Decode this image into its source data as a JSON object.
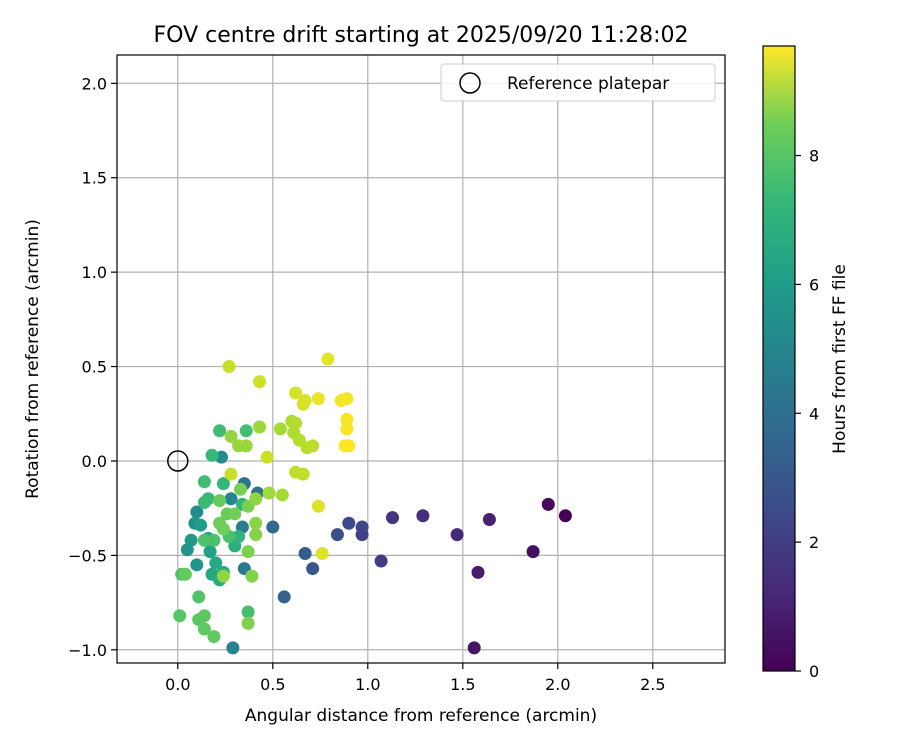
{
  "chart_data": {
    "type": "scatter",
    "title": "FOV centre drift starting at 2025/09/20 11:28:02",
    "xlabel": "Angular distance from reference (arcmin)",
    "ylabel": "Rotation from reference (arcmin)",
    "xlim": [
      -0.32,
      2.88
    ],
    "ylim": [
      -1.07,
      2.15
    ],
    "xticks": [
      0.0,
      0.5,
      1.0,
      1.5,
      2.0,
      2.5
    ],
    "xtick_labels": [
      "0.0",
      "0.5",
      "1.0",
      "1.5",
      "2.0",
      "2.5"
    ],
    "yticks": [
      -1.0,
      -0.5,
      0.0,
      0.5,
      1.0,
      1.5,
      2.0
    ],
    "ytick_labels": [
      "−1.0",
      "−0.5",
      "0.0",
      "0.5",
      "1.0",
      "1.5",
      "2.0"
    ],
    "grid": true,
    "legend": {
      "position": "top-right",
      "entries": [
        "Reference platepar"
      ]
    },
    "reference_point": {
      "x": 0.0,
      "y": 0.0
    },
    "colorbar": {
      "label": "Hours from first FF file",
      "range": [
        0,
        9.7
      ],
      "ticks": [
        0,
        2,
        4,
        6,
        8
      ],
      "tick_labels": [
        "0",
        "2",
        "4",
        "6",
        "8"
      ],
      "colormap": "viridis"
    },
    "points": [
      {
        "x": 2.04,
        "y": -0.29,
        "h": 0.0
      },
      {
        "x": 1.95,
        "y": -0.23,
        "h": 0.2
      },
      {
        "x": 1.87,
        "y": -0.48,
        "h": 0.35
      },
      {
        "x": 1.56,
        "y": -0.99,
        "h": 0.55
      },
      {
        "x": 1.58,
        "y": -0.59,
        "h": 0.7
      },
      {
        "x": 1.64,
        "y": -0.31,
        "h": 0.9
      },
      {
        "x": 1.47,
        "y": -0.39,
        "h": 1.1
      },
      {
        "x": 1.29,
        "y": -0.29,
        "h": 1.3
      },
      {
        "x": 1.13,
        "y": -0.3,
        "h": 1.5
      },
      {
        "x": 1.07,
        "y": -0.53,
        "h": 1.7
      },
      {
        "x": 0.97,
        "y": -0.39,
        "h": 1.9
      },
      {
        "x": 0.97,
        "y": -0.35,
        "h": 2.05
      },
      {
        "x": 0.9,
        "y": -0.33,
        "h": 2.2
      },
      {
        "x": 0.84,
        "y": -0.39,
        "h": 2.4
      },
      {
        "x": 0.71,
        "y": -0.57,
        "h": 2.6
      },
      {
        "x": 0.67,
        "y": -0.49,
        "h": 2.8
      },
      {
        "x": 0.56,
        "y": -0.72,
        "h": 3.0
      },
      {
        "x": 0.5,
        "y": -0.35,
        "h": 3.3
      },
      {
        "x": 0.42,
        "y": -0.17,
        "h": 3.5
      },
      {
        "x": 0.35,
        "y": -0.12,
        "h": 3.7
      },
      {
        "x": 0.35,
        "y": -0.57,
        "h": 3.9
      },
      {
        "x": 0.34,
        "y": -0.35,
        "h": 4.1
      },
      {
        "x": 0.29,
        "y": -0.99,
        "h": 4.3
      },
      {
        "x": 0.28,
        "y": -0.2,
        "h": 4.45
      },
      {
        "x": 0.23,
        "y": 0.02,
        "h": 4.6
      },
      {
        "x": 0.1,
        "y": -0.27,
        "h": 4.75
      },
      {
        "x": 0.09,
        "y": -0.33,
        "h": 4.9
      },
      {
        "x": 0.05,
        "y": -0.47,
        "h": 5.0
      },
      {
        "x": 0.1,
        "y": -0.55,
        "h": 5.1
      },
      {
        "x": 0.07,
        "y": -0.42,
        "h": 5.2
      },
      {
        "x": 0.12,
        "y": -0.34,
        "h": 5.35
      },
      {
        "x": 0.16,
        "y": -0.41,
        "h": 5.5
      },
      {
        "x": 0.17,
        "y": -0.48,
        "h": 5.6
      },
      {
        "x": 0.18,
        "y": -0.6,
        "h": 5.7
      },
      {
        "x": 0.2,
        "y": -0.54,
        "h": 5.8
      },
      {
        "x": 0.22,
        "y": -0.63,
        "h": 5.9
      },
      {
        "x": 0.24,
        "y": -0.59,
        "h": 6.0
      },
      {
        "x": 0.3,
        "y": -0.45,
        "h": 6.1
      },
      {
        "x": 0.32,
        "y": -0.4,
        "h": 6.2
      },
      {
        "x": 0.34,
        "y": -0.23,
        "h": 6.3
      },
      {
        "x": 0.24,
        "y": -0.12,
        "h": 6.4
      },
      {
        "x": 0.18,
        "y": 0.03,
        "h": 6.5
      },
      {
        "x": 0.16,
        "y": -0.2,
        "h": 6.55
      },
      {
        "x": 0.14,
        "y": -0.22,
        "h": 6.6
      },
      {
        "x": 0.14,
        "y": -0.11,
        "h": 6.65
      },
      {
        "x": 0.22,
        "y": 0.16,
        "h": 6.7
      },
      {
        "x": 0.36,
        "y": 0.16,
        "h": 6.75
      },
      {
        "x": 0.37,
        "y": -0.8,
        "h": 6.8
      },
      {
        "x": 0.27,
        "y": -0.4,
        "h": 6.85
      },
      {
        "x": 0.19,
        "y": -0.42,
        "h": 6.9
      },
      {
        "x": 0.14,
        "y": -0.42,
        "h": 6.95
      },
      {
        "x": 0.11,
        "y": -0.72,
        "h": 7.0
      },
      {
        "x": 0.02,
        "y": -0.6,
        "h": 7.05
      },
      {
        "x": 0.01,
        "y": -0.82,
        "h": 7.1
      },
      {
        "x": 0.11,
        "y": -0.84,
        "h": 7.15
      },
      {
        "x": 0.14,
        "y": -0.82,
        "h": 7.2
      },
      {
        "x": 0.14,
        "y": -0.89,
        "h": 7.25
      },
      {
        "x": 0.19,
        "y": -0.93,
        "h": 7.3
      },
      {
        "x": 0.04,
        "y": -0.6,
        "h": 7.35
      },
      {
        "x": 0.22,
        "y": -0.21,
        "h": 7.4
      },
      {
        "x": 0.26,
        "y": -0.28,
        "h": 7.45
      },
      {
        "x": 0.22,
        "y": -0.33,
        "h": 7.5
      },
      {
        "x": 0.24,
        "y": -0.36,
        "h": 7.55
      },
      {
        "x": 0.3,
        "y": -0.28,
        "h": 7.6
      },
      {
        "x": 0.33,
        "y": -0.15,
        "h": 7.65
      },
      {
        "x": 0.37,
        "y": -0.24,
        "h": 7.7
      },
      {
        "x": 0.37,
        "y": -0.48,
        "h": 7.75
      },
      {
        "x": 0.37,
        "y": -0.86,
        "h": 7.8
      },
      {
        "x": 0.39,
        "y": -0.61,
        "h": 7.85
      },
      {
        "x": 0.41,
        "y": -0.39,
        "h": 7.9
      },
      {
        "x": 0.41,
        "y": -0.33,
        "h": 7.95
      },
      {
        "x": 0.41,
        "y": -0.2,
        "h": 8.0
      },
      {
        "x": 0.24,
        "y": -0.61,
        "h": 8.05
      },
      {
        "x": 0.28,
        "y": 0.13,
        "h": 8.1
      },
      {
        "x": 0.32,
        "y": 0.08,
        "h": 8.15
      },
      {
        "x": 0.36,
        "y": 0.08,
        "h": 8.2
      },
      {
        "x": 0.43,
        "y": 0.18,
        "h": 8.25
      },
      {
        "x": 0.48,
        "y": -0.17,
        "h": 8.3
      },
      {
        "x": 0.55,
        "y": -0.18,
        "h": 8.35
      },
      {
        "x": 0.54,
        "y": 0.17,
        "h": 8.4
      },
      {
        "x": 0.6,
        "y": 0.21,
        "h": 8.45
      },
      {
        "x": 0.61,
        "y": 0.15,
        "h": 8.5
      },
      {
        "x": 0.62,
        "y": 0.2,
        "h": 8.55
      },
      {
        "x": 0.64,
        "y": 0.11,
        "h": 8.6
      },
      {
        "x": 0.68,
        "y": 0.07,
        "h": 8.65
      },
      {
        "x": 0.71,
        "y": 0.08,
        "h": 8.7
      },
      {
        "x": 0.62,
        "y": -0.06,
        "h": 8.75
      },
      {
        "x": 0.66,
        "y": -0.07,
        "h": 8.8
      },
      {
        "x": 0.27,
        "y": 0.5,
        "h": 8.85
      },
      {
        "x": 0.28,
        "y": -0.07,
        "h": 8.9
      },
      {
        "x": 0.47,
        "y": 0.02,
        "h": 8.95
      },
      {
        "x": 0.43,
        "y": 0.42,
        "h": 9.0
      },
      {
        "x": 0.62,
        "y": 0.36,
        "h": 9.05
      },
      {
        "x": 0.66,
        "y": 0.3,
        "h": 9.1
      },
      {
        "x": 0.67,
        "y": 0.32,
        "h": 9.15
      },
      {
        "x": 0.74,
        "y": -0.24,
        "h": 9.2
      },
      {
        "x": 0.76,
        "y": -0.49,
        "h": 9.25
      },
      {
        "x": 0.79,
        "y": 0.54,
        "h": 9.3
      },
      {
        "x": 0.74,
        "y": 0.33,
        "h": 9.4
      },
      {
        "x": 0.86,
        "y": 0.32,
        "h": 9.5
      },
      {
        "x": 0.89,
        "y": 0.33,
        "h": 9.55
      },
      {
        "x": 0.89,
        "y": 0.22,
        "h": 9.6
      },
      {
        "x": 0.89,
        "y": 0.17,
        "h": 9.62
      },
      {
        "x": 0.88,
        "y": 0.08,
        "h": 9.65
      },
      {
        "x": 0.9,
        "y": 0.08,
        "h": 9.7
      }
    ]
  }
}
